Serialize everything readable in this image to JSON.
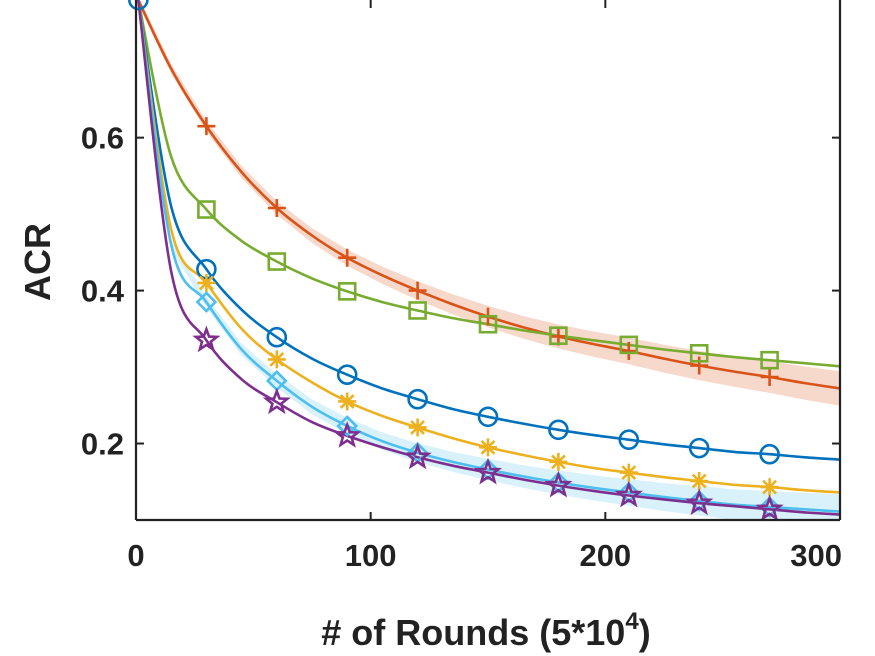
{
  "chart_data": {
    "type": "line",
    "title": "",
    "xlabel_main": "# of Rounds (5*10",
    "xlabel_sup": "4",
    "xlabel_close": ")",
    "ylabel": "ACR",
    "xlim": [
      0,
      300
    ],
    "ylim": [
      0.1,
      0.78
    ],
    "x_ticks": [
      0,
      100,
      200,
      300
    ],
    "x_tick_labels": [
      "0",
      "100",
      "200",
      "300"
    ],
    "y_ticks": [
      0.2,
      0.4,
      0.6
    ],
    "y_tick_labels": [
      "0.2",
      "0.4",
      "0.6"
    ],
    "grid": false,
    "legend": "none",
    "series": [
      {
        "name": "series-red-plus",
        "color": "#D95319",
        "marker": "plus",
        "band": true,
        "x": [
          1,
          15,
          30,
          45,
          60,
          75,
          90,
          105,
          120,
          135,
          150,
          165,
          180,
          195,
          210,
          225,
          240,
          255,
          270,
          285,
          300
        ],
        "values": [
          0.78,
          0.69,
          0.615,
          0.555,
          0.508,
          0.472,
          0.443,
          0.42,
          0.4,
          0.382,
          0.366,
          0.352,
          0.34,
          0.33,
          0.321,
          0.311,
          0.302,
          0.294,
          0.287,
          0.279,
          0.272
        ],
        "marker_x": [
          30,
          60,
          90,
          120,
          150,
          180,
          210,
          240,
          270
        ]
      },
      {
        "name": "series-green-square",
        "color": "#77AC30",
        "marker": "square",
        "band": false,
        "x": [
          1,
          15,
          30,
          45,
          60,
          75,
          90,
          105,
          120,
          135,
          150,
          165,
          180,
          195,
          210,
          225,
          240,
          255,
          270,
          285,
          300
        ],
        "values": [
          0.78,
          0.575,
          0.506,
          0.465,
          0.438,
          0.416,
          0.399,
          0.385,
          0.374,
          0.364,
          0.356,
          0.348,
          0.341,
          0.335,
          0.329,
          0.323,
          0.318,
          0.313,
          0.309,
          0.305,
          0.301
        ],
        "marker_x": [
          30,
          60,
          90,
          120,
          150,
          180,
          210,
          240,
          270
        ]
      },
      {
        "name": "series-blue-circle",
        "color": "#0072BD",
        "marker": "circle",
        "band": false,
        "x": [
          1,
          15,
          30,
          45,
          60,
          75,
          90,
          105,
          120,
          135,
          150,
          165,
          180,
          195,
          210,
          225,
          240,
          255,
          270,
          285,
          300
        ],
        "values": [
          0.78,
          0.51,
          0.428,
          0.375,
          0.339,
          0.311,
          0.29,
          0.272,
          0.258,
          0.245,
          0.235,
          0.226,
          0.218,
          0.211,
          0.205,
          0.199,
          0.194,
          0.189,
          0.186,
          0.182,
          0.179
        ],
        "marker_x": [
          1,
          30,
          60,
          90,
          120,
          150,
          180,
          210,
          240,
          270
        ]
      },
      {
        "name": "series-yellow-asterisk",
        "color": "#EDB120",
        "marker": "asterisk",
        "band": false,
        "x": [
          1,
          15,
          30,
          45,
          60,
          75,
          90,
          105,
          120,
          135,
          150,
          165,
          180,
          195,
          210,
          225,
          240,
          255,
          270,
          285,
          300
        ],
        "values": [
          0.78,
          0.48,
          0.41,
          0.35,
          0.31,
          0.28,
          0.255,
          0.236,
          0.221,
          0.207,
          0.195,
          0.185,
          0.176,
          0.168,
          0.162,
          0.156,
          0.151,
          0.146,
          0.143,
          0.139,
          0.136
        ],
        "marker_x": [
          30,
          60,
          90,
          120,
          150,
          180,
          210,
          240,
          270
        ]
      },
      {
        "name": "series-cyan-diamond",
        "color": "#4DBEEE",
        "marker": "diamond",
        "band": true,
        "x": [
          1,
          15,
          30,
          45,
          60,
          75,
          90,
          105,
          120,
          135,
          150,
          165,
          180,
          195,
          210,
          225,
          240,
          255,
          270,
          285,
          300
        ],
        "values": [
          0.78,
          0.46,
          0.385,
          0.323,
          0.282,
          0.248,
          0.223,
          0.203,
          0.188,
          0.176,
          0.166,
          0.157,
          0.149,
          0.142,
          0.136,
          0.13,
          0.125,
          0.12,
          0.117,
          0.114,
          0.111
        ],
        "marker_x": [
          30,
          60,
          90,
          120,
          150,
          180,
          210,
          240,
          270
        ]
      },
      {
        "name": "series-purple-star",
        "color": "#7E2F8E",
        "marker": "star",
        "band": false,
        "x": [
          1,
          15,
          30,
          45,
          60,
          75,
          90,
          105,
          120,
          135,
          150,
          165,
          180,
          195,
          210,
          225,
          240,
          255,
          270,
          285,
          300
        ],
        "values": [
          0.78,
          0.425,
          0.335,
          0.284,
          0.254,
          0.228,
          0.21,
          0.195,
          0.182,
          0.171,
          0.162,
          0.153,
          0.145,
          0.138,
          0.132,
          0.127,
          0.122,
          0.118,
          0.114,
          0.11,
          0.107
        ],
        "marker_x": [
          30,
          60,
          90,
          120,
          150,
          180,
          210,
          240,
          270
        ]
      }
    ]
  }
}
